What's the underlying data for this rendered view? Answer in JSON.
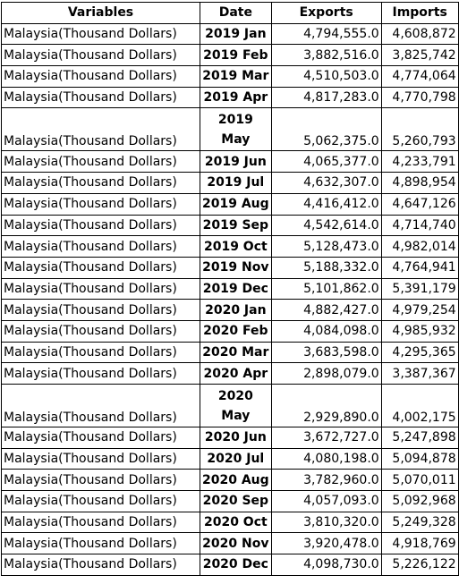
{
  "table": {
    "headers": {
      "variables": "Variables",
      "date": "Date",
      "exports": "Exports",
      "imports": "Imports"
    },
    "rows": [
      {
        "variable": "Malaysia(Thousand Dollars)",
        "date": "2019 Jan",
        "exports": "4,794,555.0",
        "imports": "4,608,872"
      },
      {
        "variable": "Malaysia(Thousand Dollars)",
        "date": "2019 Feb",
        "exports": "3,882,516.0",
        "imports": "3,825,742"
      },
      {
        "variable": "Malaysia(Thousand Dollars)",
        "date": "2019 Mar",
        "exports": "4,510,503.0",
        "imports": "4,774,064"
      },
      {
        "variable": "Malaysia(Thousand Dollars)",
        "date": "2019 Apr",
        "exports": "4,817,283.0",
        "imports": "4,770,798"
      },
      {
        "variable": "Malaysia(Thousand Dollars)",
        "date": "2019 May",
        "exports": "5,062,375.0",
        "imports": "5,260,793",
        "wrapped": true
      },
      {
        "variable": "Malaysia(Thousand Dollars)",
        "date": "2019 Jun",
        "exports": "4,065,377.0",
        "imports": "4,233,791"
      },
      {
        "variable": "Malaysia(Thousand Dollars)",
        "date": "2019 Jul",
        "exports": "4,632,307.0",
        "imports": "4,898,954"
      },
      {
        "variable": "Malaysia(Thousand Dollars)",
        "date": "2019 Aug",
        "exports": "4,416,412.0",
        "imports": "4,647,126"
      },
      {
        "variable": "Malaysia(Thousand Dollars)",
        "date": "2019 Sep",
        "exports": "4,542,614.0",
        "imports": "4,714,740"
      },
      {
        "variable": "Malaysia(Thousand Dollars)",
        "date": "2019 Oct",
        "exports": "5,128,473.0",
        "imports": "4,982,014"
      },
      {
        "variable": "Malaysia(Thousand Dollars)",
        "date": "2019 Nov",
        "exports": "5,188,332.0",
        "imports": "4,764,941"
      },
      {
        "variable": "Malaysia(Thousand Dollars)",
        "date": "2019 Dec",
        "exports": "5,101,862.0",
        "imports": "5,391,179"
      },
      {
        "variable": "Malaysia(Thousand Dollars)",
        "date": "2020 Jan",
        "exports": "4,882,427.0",
        "imports": "4,979,254"
      },
      {
        "variable": "Malaysia(Thousand Dollars)",
        "date": "2020 Feb",
        "exports": "4,084,098.0",
        "imports": "4,985,932"
      },
      {
        "variable": "Malaysia(Thousand Dollars)",
        "date": "2020 Mar",
        "exports": "3,683,598.0",
        "imports": "4,295,365"
      },
      {
        "variable": "Malaysia(Thousand Dollars)",
        "date": "2020 Apr",
        "exports": "2,898,079.0",
        "imports": "3,387,367"
      },
      {
        "variable": "Malaysia(Thousand Dollars)",
        "date": "2020 May",
        "exports": "2,929,890.0",
        "imports": "4,002,175",
        "wrapped": true
      },
      {
        "variable": "Malaysia(Thousand Dollars)",
        "date": "2020 Jun",
        "exports": "3,672,727.0",
        "imports": "5,247,898"
      },
      {
        "variable": "Malaysia(Thousand Dollars)",
        "date": "2020 Jul",
        "exports": "4,080,198.0",
        "imports": "5,094,878"
      },
      {
        "variable": "Malaysia(Thousand Dollars)",
        "date": "2020 Aug",
        "exports": "3,782,960.0",
        "imports": "5,070,011"
      },
      {
        "variable": "Malaysia(Thousand Dollars)",
        "date": "2020 Sep",
        "exports": "4,057,093.0",
        "imports": "5,092,968"
      },
      {
        "variable": "Malaysia(Thousand Dollars)",
        "date": "2020 Oct",
        "exports": "3,810,320.0",
        "imports": "5,249,328"
      },
      {
        "variable": "Malaysia(Thousand Dollars)",
        "date": "2020 Nov",
        "exports": "3,920,478.0",
        "imports": "4,918,769"
      },
      {
        "variable": "Malaysia(Thousand Dollars)",
        "date": "2020 Dec",
        "exports": "4,098,730.0",
        "imports": "5,226,122"
      }
    ]
  }
}
